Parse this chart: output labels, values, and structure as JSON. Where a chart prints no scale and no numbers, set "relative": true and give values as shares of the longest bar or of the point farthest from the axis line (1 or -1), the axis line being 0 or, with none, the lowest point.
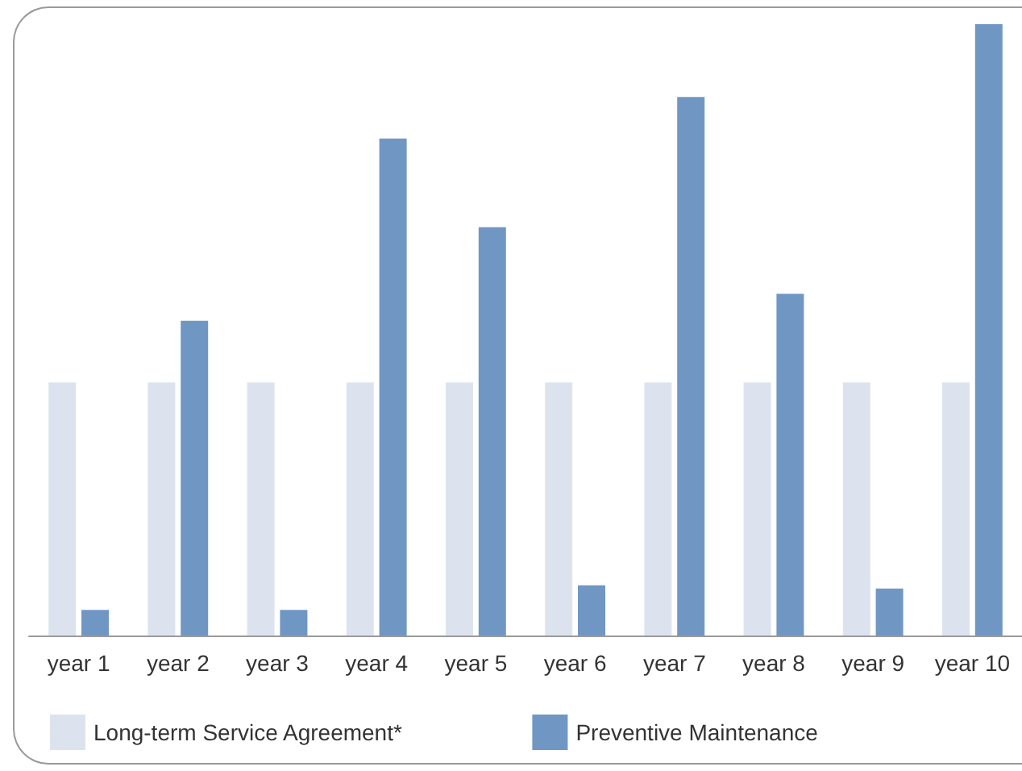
{
  "chart_data": {
    "type": "bar",
    "relative": true,
    "categories": [
      "year 1",
      "year 2",
      "year 3",
      "year 4",
      "year 5",
      "year 6",
      "year 7",
      "year 8",
      "year 9",
      "year 10"
    ],
    "series": [
      {
        "name": "Long-term Service Agreement*",
        "color": "#dde3ee",
        "values": [
          0.414,
          0.414,
          0.414,
          0.414,
          0.414,
          0.414,
          0.414,
          0.414,
          0.414,
          0.414
        ]
      },
      {
        "name": "Preventive Maintenance",
        "color": "#7097c4",
        "values": [
          0.042,
          0.515,
          0.042,
          0.813,
          0.668,
          0.082,
          0.881,
          0.559,
          0.077,
          1
        ]
      }
    ],
    "legend": "bottom"
  }
}
